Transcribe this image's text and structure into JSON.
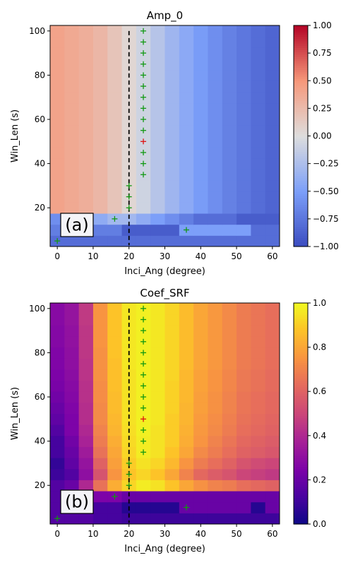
{
  "chart_data": [
    {
      "type": "heatmap",
      "title": "Amp_0",
      "xlabel": "Inci_Ang (degree)",
      "ylabel": "Win_Len (s)",
      "panel_label": "(a)",
      "xlim": [
        -2,
        62
      ],
      "ylim": [
        2.5,
        102.5
      ],
      "xticks": [
        0,
        10,
        20,
        30,
        40,
        50,
        60
      ],
      "yticks": [
        20,
        40,
        60,
        80,
        100
      ],
      "colormap": "coolwarm",
      "vmin": -1,
      "vmax": 1,
      "colorbar_ticks": [
        "1.00",
        "0.75",
        "0.50",
        "0.25",
        "0.00",
        "−0.25",
        "−0.50",
        "−0.75",
        "−1.00"
      ],
      "x_bins": [
        0,
        4,
        8,
        12,
        16,
        20,
        24,
        28,
        32,
        36,
        40,
        44,
        48,
        52,
        56,
        60
      ],
      "y_bins": [
        5,
        10,
        15,
        20,
        25,
        30,
        35,
        40,
        45,
        50,
        55,
        60,
        65,
        70,
        75,
        80,
        85,
        90,
        95,
        100
      ],
      "values": [
        [
          -0.8,
          -0.8,
          -0.8,
          -0.8,
          -0.8,
          -0.8,
          -0.8,
          -0.8,
          -0.8,
          -0.8,
          -0.8,
          -0.8,
          -0.8,
          -0.8,
          -0.8,
          -0.8
        ],
        [
          -0.7,
          -0.7,
          -0.6,
          -0.7,
          -0.7,
          -0.9,
          -0.9,
          -0.9,
          -0.9,
          -0.5,
          -0.5,
          -0.5,
          -0.5,
          -0.5,
          -0.8,
          -0.8
        ],
        [
          -0.6,
          -0.6,
          -0.5,
          -0.4,
          -0.3,
          -0.3,
          -0.4,
          -0.5,
          -0.6,
          -0.7,
          -0.8,
          -0.8,
          -0.8,
          -0.9,
          -0.9,
          -0.9
        ],
        [
          0.42,
          0.38,
          0.34,
          0.28,
          0.18,
          0.05,
          -0.08,
          -0.2,
          -0.32,
          -0.42,
          -0.52,
          -0.6,
          -0.68,
          -0.74,
          -0.8,
          -0.85
        ],
        [
          0.42,
          0.38,
          0.34,
          0.28,
          0.18,
          0.05,
          -0.08,
          -0.2,
          -0.32,
          -0.42,
          -0.52,
          -0.6,
          -0.68,
          -0.74,
          -0.8,
          -0.85
        ],
        [
          0.42,
          0.38,
          0.34,
          0.28,
          0.18,
          0.05,
          -0.08,
          -0.2,
          -0.32,
          -0.42,
          -0.52,
          -0.6,
          -0.68,
          -0.74,
          -0.8,
          -0.85
        ],
        [
          0.42,
          0.38,
          0.34,
          0.28,
          0.18,
          0.05,
          -0.08,
          -0.2,
          -0.32,
          -0.42,
          -0.52,
          -0.6,
          -0.68,
          -0.74,
          -0.8,
          -0.85
        ],
        [
          0.42,
          0.38,
          0.34,
          0.28,
          0.18,
          0.05,
          -0.08,
          -0.2,
          -0.32,
          -0.42,
          -0.52,
          -0.6,
          -0.68,
          -0.74,
          -0.8,
          -0.85
        ],
        [
          0.42,
          0.38,
          0.34,
          0.28,
          0.18,
          0.05,
          -0.08,
          -0.2,
          -0.32,
          -0.42,
          -0.52,
          -0.6,
          -0.68,
          -0.74,
          -0.8,
          -0.85
        ],
        [
          0.42,
          0.38,
          0.34,
          0.28,
          0.18,
          0.05,
          -0.08,
          -0.2,
          -0.32,
          -0.42,
          -0.52,
          -0.6,
          -0.68,
          -0.74,
          -0.8,
          -0.85
        ],
        [
          0.42,
          0.38,
          0.34,
          0.28,
          0.18,
          0.05,
          -0.08,
          -0.2,
          -0.32,
          -0.42,
          -0.52,
          -0.6,
          -0.68,
          -0.74,
          -0.8,
          -0.85
        ],
        [
          0.42,
          0.38,
          0.34,
          0.28,
          0.18,
          0.05,
          -0.08,
          -0.2,
          -0.32,
          -0.42,
          -0.52,
          -0.6,
          -0.68,
          -0.74,
          -0.8,
          -0.85
        ],
        [
          0.42,
          0.38,
          0.34,
          0.28,
          0.18,
          0.05,
          -0.08,
          -0.2,
          -0.32,
          -0.42,
          -0.52,
          -0.6,
          -0.68,
          -0.74,
          -0.8,
          -0.85
        ],
        [
          0.42,
          0.38,
          0.34,
          0.28,
          0.18,
          0.05,
          -0.08,
          -0.2,
          -0.32,
          -0.42,
          -0.52,
          -0.6,
          -0.68,
          -0.74,
          -0.8,
          -0.85
        ],
        [
          0.42,
          0.38,
          0.34,
          0.28,
          0.18,
          0.05,
          -0.08,
          -0.2,
          -0.32,
          -0.42,
          -0.52,
          -0.6,
          -0.68,
          -0.74,
          -0.8,
          -0.85
        ],
        [
          0.42,
          0.38,
          0.34,
          0.28,
          0.18,
          0.05,
          -0.08,
          -0.2,
          -0.32,
          -0.42,
          -0.52,
          -0.6,
          -0.68,
          -0.74,
          -0.8,
          -0.85
        ],
        [
          0.42,
          0.38,
          0.34,
          0.28,
          0.18,
          0.05,
          -0.08,
          -0.2,
          -0.32,
          -0.42,
          -0.52,
          -0.6,
          -0.68,
          -0.74,
          -0.8,
          -0.85
        ],
        [
          0.42,
          0.38,
          0.34,
          0.28,
          0.18,
          0.05,
          -0.08,
          -0.2,
          -0.32,
          -0.42,
          -0.52,
          -0.6,
          -0.68,
          -0.74,
          -0.8,
          -0.85
        ],
        [
          0.42,
          0.38,
          0.34,
          0.28,
          0.18,
          0.05,
          -0.08,
          -0.2,
          -0.32,
          -0.42,
          -0.52,
          -0.6,
          -0.68,
          -0.74,
          -0.8,
          -0.85
        ],
        [
          0.42,
          0.38,
          0.34,
          0.28,
          0.18,
          0.05,
          -0.08,
          -0.2,
          -0.32,
          -0.42,
          -0.52,
          -0.6,
          -0.68,
          -0.74,
          -0.8,
          -0.85
        ]
      ],
      "vline_x": 20,
      "vline_range": [
        3,
        100
      ],
      "green_markers": [
        [
          0,
          5
        ],
        [
          16,
          15
        ],
        [
          20,
          20
        ],
        [
          20,
          25
        ],
        [
          20,
          30
        ],
        [
          24,
          35
        ],
        [
          24,
          40
        ],
        [
          24,
          45
        ],
        [
          24,
          55
        ],
        [
          24,
          60
        ],
        [
          24,
          65
        ],
        [
          24,
          70
        ],
        [
          24,
          75
        ],
        [
          24,
          80
        ],
        [
          24,
          85
        ],
        [
          24,
          90
        ],
        [
          24,
          95
        ],
        [
          24,
          100
        ],
        [
          36,
          10
        ]
      ],
      "red_markers": [
        [
          24,
          50
        ]
      ]
    },
    {
      "type": "heatmap",
      "title": "Coef_SRF",
      "xlabel": "Inci_Ang (degree)",
      "ylabel": "Win_Len (s)",
      "panel_label": "(b)",
      "xlim": [
        -2,
        62
      ],
      "ylim": [
        2.5,
        102.5
      ],
      "xticks": [
        0,
        10,
        20,
        30,
        40,
        50,
        60
      ],
      "yticks": [
        20,
        40,
        60,
        80,
        100
      ],
      "colormap": "plasma",
      "vmin": 0,
      "vmax": 1,
      "colorbar_ticks": [
        "1.0",
        "0.8",
        "0.6",
        "0.4",
        "0.2",
        "0.0"
      ],
      "x_bins": [
        0,
        4,
        8,
        12,
        16,
        20,
        24,
        28,
        32,
        36,
        40,
        44,
        48,
        52,
        56,
        60
      ],
      "y_bins": [
        5,
        10,
        15,
        20,
        25,
        30,
        35,
        40,
        45,
        50,
        55,
        60,
        65,
        70,
        75,
        80,
        85,
        90,
        95,
        100
      ],
      "values": [
        [
          0.15,
          0.15,
          0.15,
          0.12,
          0.12,
          0.1,
          0.1,
          0.1,
          0.1,
          0.1,
          0.1,
          0.1,
          0.1,
          0.1,
          0.1,
          0.1
        ],
        [
          0.15,
          0.15,
          0.15,
          0.12,
          0.12,
          0.05,
          0.05,
          0.05,
          0.05,
          0.2,
          0.2,
          0.2,
          0.2,
          0.2,
          0.05,
          0.2
        ],
        [
          0.15,
          0.2,
          0.25,
          0.25,
          0.25,
          0.2,
          0.2,
          0.2,
          0.2,
          0.2,
          0.2,
          0.2,
          0.2,
          0.2,
          0.2,
          0.2
        ],
        [
          0.15,
          0.2,
          0.4,
          0.65,
          0.82,
          0.92,
          0.97,
          0.95,
          0.88,
          0.8,
          0.74,
          0.7,
          0.68,
          0.64,
          0.62,
          0.6
        ],
        [
          0.1,
          0.15,
          0.3,
          0.55,
          0.75,
          0.88,
          0.92,
          0.88,
          0.8,
          0.7,
          0.62,
          0.58,
          0.55,
          0.5,
          0.48,
          0.46
        ],
        [
          0.08,
          0.18,
          0.32,
          0.6,
          0.78,
          0.9,
          0.95,
          0.92,
          0.85,
          0.75,
          0.68,
          0.64,
          0.6,
          0.55,
          0.52,
          0.5
        ],
        [
          0.12,
          0.2,
          0.35,
          0.65,
          0.8,
          0.92,
          0.97,
          0.95,
          0.88,
          0.8,
          0.72,
          0.68,
          0.64,
          0.6,
          0.58,
          0.56
        ],
        [
          0.12,
          0.22,
          0.38,
          0.68,
          0.82,
          0.93,
          0.97,
          0.95,
          0.9,
          0.82,
          0.75,
          0.7,
          0.66,
          0.62,
          0.6,
          0.58
        ],
        [
          0.15,
          0.25,
          0.4,
          0.7,
          0.84,
          0.94,
          0.98,
          0.95,
          0.9,
          0.83,
          0.76,
          0.72,
          0.68,
          0.64,
          0.62,
          0.6
        ],
        [
          0.18,
          0.25,
          0.42,
          0.72,
          0.85,
          0.95,
          0.98,
          0.96,
          0.9,
          0.84,
          0.77,
          0.73,
          0.69,
          0.65,
          0.63,
          0.61
        ],
        [
          0.2,
          0.26,
          0.42,
          0.72,
          0.86,
          0.95,
          0.98,
          0.96,
          0.91,
          0.84,
          0.78,
          0.74,
          0.7,
          0.66,
          0.64,
          0.62
        ],
        [
          0.22,
          0.27,
          0.43,
          0.73,
          0.86,
          0.95,
          0.98,
          0.96,
          0.91,
          0.85,
          0.78,
          0.74,
          0.7,
          0.66,
          0.64,
          0.62
        ],
        [
          0.24,
          0.28,
          0.43,
          0.73,
          0.87,
          0.95,
          0.98,
          0.96,
          0.91,
          0.85,
          0.79,
          0.75,
          0.71,
          0.67,
          0.65,
          0.63
        ],
        [
          0.25,
          0.29,
          0.44,
          0.74,
          0.87,
          0.95,
          0.98,
          0.96,
          0.92,
          0.85,
          0.79,
          0.75,
          0.71,
          0.67,
          0.65,
          0.63
        ],
        [
          0.26,
          0.3,
          0.44,
          0.74,
          0.87,
          0.96,
          0.98,
          0.96,
          0.92,
          0.86,
          0.8,
          0.76,
          0.72,
          0.68,
          0.66,
          0.64
        ],
        [
          0.26,
          0.3,
          0.45,
          0.74,
          0.88,
          0.96,
          0.98,
          0.96,
          0.92,
          0.86,
          0.8,
          0.76,
          0.72,
          0.68,
          0.66,
          0.64
        ],
        [
          0.27,
          0.31,
          0.45,
          0.75,
          0.88,
          0.96,
          0.98,
          0.96,
          0.92,
          0.86,
          0.8,
          0.76,
          0.72,
          0.68,
          0.66,
          0.64
        ],
        [
          0.27,
          0.31,
          0.45,
          0.75,
          0.88,
          0.96,
          0.98,
          0.96,
          0.92,
          0.86,
          0.8,
          0.76,
          0.72,
          0.68,
          0.66,
          0.64
        ],
        [
          0.28,
          0.32,
          0.46,
          0.75,
          0.88,
          0.96,
          0.98,
          0.96,
          0.92,
          0.86,
          0.8,
          0.76,
          0.72,
          0.68,
          0.66,
          0.64
        ],
        [
          0.28,
          0.32,
          0.46,
          0.75,
          0.88,
          0.96,
          0.98,
          0.96,
          0.92,
          0.86,
          0.8,
          0.76,
          0.72,
          0.68,
          0.66,
          0.64
        ]
      ],
      "vline_x": 20,
      "vline_range": [
        3,
        100
      ],
      "green_markers": [
        [
          0,
          5
        ],
        [
          16,
          15
        ],
        [
          20,
          20
        ],
        [
          20,
          25
        ],
        [
          20,
          30
        ],
        [
          24,
          35
        ],
        [
          24,
          40
        ],
        [
          24,
          45
        ],
        [
          24,
          55
        ],
        [
          24,
          60
        ],
        [
          24,
          65
        ],
        [
          24,
          70
        ],
        [
          24,
          75
        ],
        [
          24,
          80
        ],
        [
          24,
          85
        ],
        [
          24,
          90
        ],
        [
          24,
          95
        ],
        [
          24,
          100
        ],
        [
          36,
          10
        ]
      ],
      "red_markers": [
        [
          24,
          50
        ]
      ]
    }
  ]
}
